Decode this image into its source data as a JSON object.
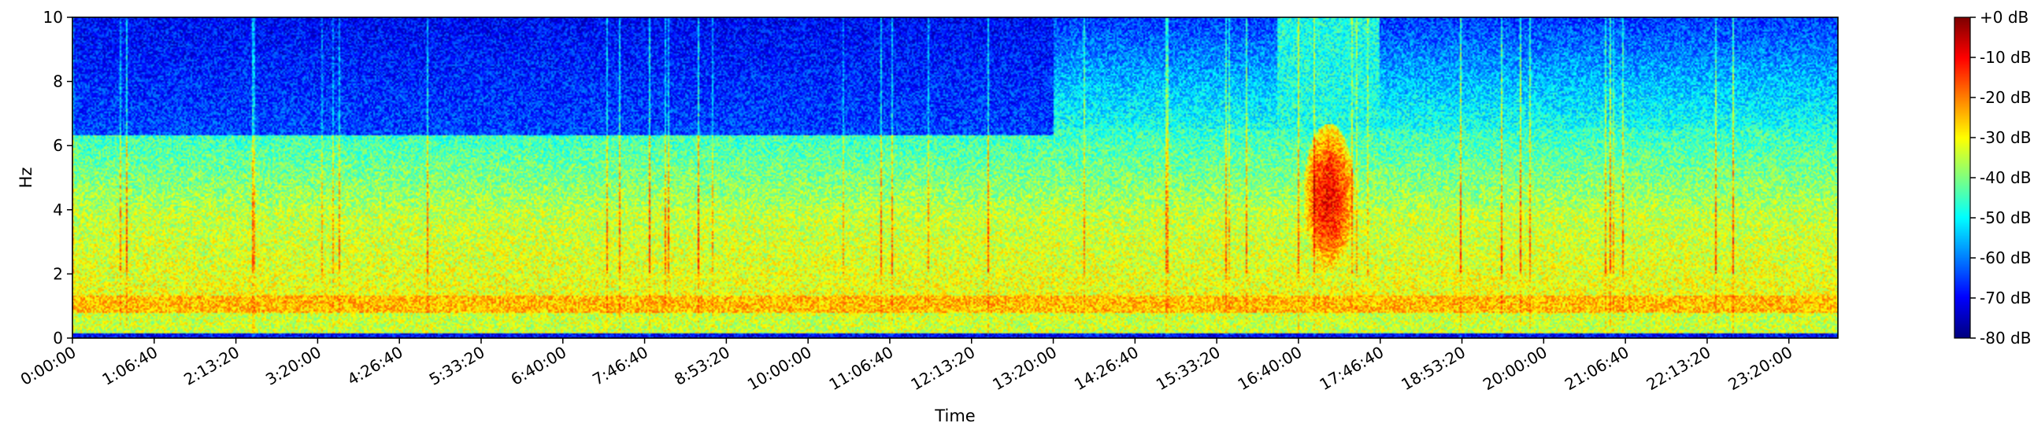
{
  "chart_data": {
    "type": "heatmap",
    "title": "",
    "xlabel": "Time",
    "ylabel": "Hz",
    "ylim": [
      0,
      10
    ],
    "y_ticks": [
      "0",
      "2",
      "4",
      "6",
      "8",
      "10"
    ],
    "y_tick_values": [
      0,
      2,
      4,
      6,
      8,
      10
    ],
    "x_range_seconds": [
      0,
      86400
    ],
    "x_ticks": [
      "0:00:00",
      "1:06:40",
      "2:13:20",
      "3:20:00",
      "4:26:40",
      "5:33:20",
      "6:40:00",
      "7:46:40",
      "8:53:20",
      "10:00:00",
      "11:06:40",
      "12:13:20",
      "13:20:00",
      "14:26:40",
      "15:33:20",
      "16:40:00",
      "17:46:40",
      "18:53:20",
      "20:00:00",
      "21:06:40",
      "22:13:20",
      "23:20:00"
    ],
    "x_tick_values_seconds": [
      0,
      4000,
      8000,
      12000,
      16000,
      20000,
      24000,
      28000,
      32000,
      36000,
      40000,
      44000,
      48000,
      52000,
      56000,
      60000,
      64000,
      68000,
      72000,
      76000,
      80000,
      84000
    ],
    "colorbar": {
      "colormap": "jet",
      "range_db": [
        -80,
        0
      ],
      "tick_labels": [
        "+0 dB",
        "-10 dB",
        "-20 dB",
        "-30 dB",
        "-40 dB",
        "-50 dB",
        "-60 dB",
        "-70 dB",
        "-80 dB"
      ],
      "tick_values": [
        0,
        -10,
        -20,
        -30,
        -40,
        -50,
        -60,
        -70,
        -80
      ]
    },
    "features": [
      {
        "label": "persistent band",
        "freq_hz": [
          0.8,
          1.3
        ],
        "level_db": -25
      },
      {
        "label": "strong event",
        "time_seconds": [
          60500,
          62500
        ],
        "freq_hz": [
          2.5,
          6.2
        ],
        "level_db": -10
      },
      {
        "label": "quiet high-frequency period",
        "time_seconds": [
          0,
          48000
        ],
        "freq_hz": [
          6.5,
          10
        ],
        "level_db": -70
      }
    ]
  }
}
